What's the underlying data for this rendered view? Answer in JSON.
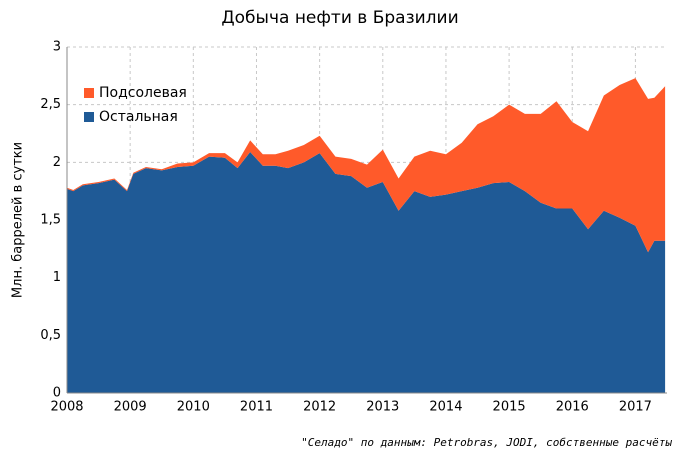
{
  "chart_data": {
    "type": "stacked_area",
    "title": "Добыча нефти в Бразилии",
    "ylabel": "Млн. баррелей в сутки",
    "annotation": "\"Селадо\" по данным: Petrobras, JODI, собственные расчёты",
    "x": [
      2008.0,
      2008.1,
      2008.25,
      2008.5,
      2008.75,
      2008.95,
      2009.05,
      2009.25,
      2009.5,
      2009.75,
      2010.0,
      2010.25,
      2010.5,
      2010.7,
      2010.9,
      2011.1,
      2011.3,
      2011.5,
      2011.75,
      2012.0,
      2012.25,
      2012.5,
      2012.75,
      2013.0,
      2013.25,
      2013.5,
      2013.75,
      2014.0,
      2014.25,
      2014.5,
      2014.75,
      2015.0,
      2015.25,
      2015.5,
      2015.75,
      2016.0,
      2016.25,
      2016.5,
      2016.75,
      2017.0,
      2017.2,
      2017.3,
      2017.47
    ],
    "series": [
      {
        "name": "Остальная",
        "color": "#1f5a96",
        "values": [
          1.77,
          1.75,
          1.8,
          1.82,
          1.85,
          1.75,
          1.9,
          1.95,
          1.93,
          1.96,
          1.97,
          2.05,
          2.04,
          1.95,
          2.09,
          1.97,
          1.97,
          1.95,
          2.0,
          2.08,
          1.9,
          1.88,
          1.78,
          1.83,
          1.58,
          1.75,
          1.7,
          1.72,
          1.75,
          1.78,
          1.82,
          1.83,
          1.75,
          1.65,
          1.6,
          1.6,
          1.42,
          1.58,
          1.52,
          1.45,
          1.22,
          1.32,
          1.32
        ]
      },
      {
        "name": "Подсолевая",
        "color": "#ff5a2a",
        "values": [
          0.01,
          0.01,
          0.01,
          0.01,
          0.01,
          0.01,
          0.01,
          0.01,
          0.01,
          0.03,
          0.03,
          0.03,
          0.04,
          0.05,
          0.1,
          0.1,
          0.1,
          0.15,
          0.15,
          0.15,
          0.15,
          0.15,
          0.2,
          0.28,
          0.28,
          0.3,
          0.4,
          0.35,
          0.42,
          0.55,
          0.58,
          0.67,
          0.67,
          0.77,
          0.93,
          0.75,
          0.85,
          1.0,
          1.15,
          1.28,
          1.33,
          1.24,
          1.34
        ]
      }
    ],
    "xlim": [
      2008,
      2017.5
    ],
    "xticks": [
      2008,
      2009,
      2010,
      2011,
      2012,
      2013,
      2014,
      2015,
      2016,
      2017
    ],
    "ylim": [
      0,
      3
    ],
    "yticks": [
      0,
      {
        "value": 0.5,
        "label": "0,5"
      },
      1,
      {
        "value": 1.5,
        "label": "1,5"
      },
      2,
      {
        "value": 2.5,
        "label": "2,5"
      },
      3
    ],
    "grid": true,
    "legend": "upper left"
  }
}
